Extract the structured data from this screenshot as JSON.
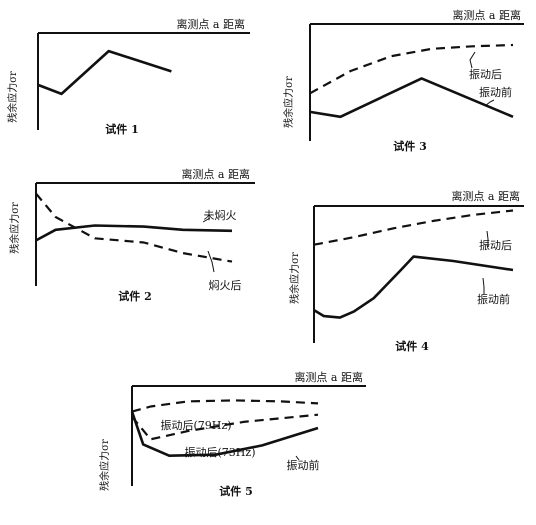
{
  "chart_data": [
    {
      "type": "line",
      "title": "试件 1",
      "xlabel": "离测点 a 距离",
      "ylabel": "残余应力σr",
      "series": [
        {
          "name": "",
          "style": "solid",
          "x": [
            0,
            1.5,
            4.5,
            8.5
          ],
          "y": [
            2.4,
            1.6,
            5.4,
            3.6
          ]
        }
      ]
    },
    {
      "type": "line",
      "title": "试件 2",
      "xlabel": "离测点 a 距离",
      "ylabel": "残余应力σr",
      "series": [
        {
          "name": "未焖火",
          "style": "solid",
          "x": [
            0,
            1.0,
            3.0,
            5.5,
            7.5,
            10
          ],
          "y": [
            2.6,
            3.6,
            4.0,
            3.9,
            3.6,
            3.5
          ]
        },
        {
          "name": "焖火后",
          "style": "dashed",
          "x": [
            0,
            1.0,
            3.0,
            5.5,
            7.5,
            10
          ],
          "y": [
            7.0,
            4.8,
            2.8,
            2.4,
            1.4,
            0.6
          ]
        }
      ]
    },
    {
      "type": "line",
      "title": "试件 3",
      "xlabel": "离测点 a 距离",
      "ylabel": "残余应力σr",
      "series": [
        {
          "name": "振动后",
          "style": "dashed",
          "x": [
            0,
            2,
            4,
            6,
            8,
            10
          ],
          "y": [
            2.4,
            4.2,
            5.4,
            6.0,
            6.2,
            6.3
          ]
        },
        {
          "name": "振动前",
          "style": "solid",
          "x": [
            0,
            1.5,
            5.5,
            10
          ],
          "y": [
            0.9,
            0.5,
            3.6,
            0.5
          ]
        }
      ]
    },
    {
      "type": "line",
      "title": "试件 4",
      "xlabel": "离测点 a 距离",
      "ylabel": "残余应力σr",
      "series": [
        {
          "name": "振动后",
          "style": "dashed",
          "x": [
            0,
            2,
            4,
            6,
            8,
            10
          ],
          "y": [
            5.4,
            5.9,
            6.5,
            7.0,
            7.4,
            7.7
          ]
        },
        {
          "name": "振动前",
          "style": "solid",
          "x": [
            0,
            0.5,
            1.3,
            2.0,
            3.0,
            4.3,
            5.0,
            7.0,
            10
          ],
          "y": [
            1.0,
            0.6,
            0.5,
            0.9,
            1.8,
            3.6,
            4.6,
            4.3,
            3.7
          ]
        }
      ]
    },
    {
      "type": "line",
      "title": "试件 5",
      "xlabel": "离测点 a 距离",
      "ylabel": "残余应力σr",
      "series": [
        {
          "name": "振动后(79Hz)",
          "style": "dashed",
          "x": [
            0,
            1.0,
            3.0,
            5.5,
            8.0,
            10
          ],
          "y": [
            5.5,
            6.0,
            6.5,
            6.6,
            6.5,
            6.3
          ]
        },
        {
          "name": "振动后(73Hz)",
          "style": "dashed",
          "x": [
            0,
            1.0,
            3.0,
            6.0,
            10
          ],
          "y": [
            5.0,
            2.8,
            3.6,
            4.5,
            5.2
          ]
        },
        {
          "name": "振动前",
          "style": "solid",
          "x": [
            0,
            0.6,
            2.0,
            4.5,
            7.0,
            10
          ],
          "y": [
            5.5,
            2.3,
            1.2,
            1.3,
            2.2,
            3.9
          ]
        }
      ]
    }
  ]
}
